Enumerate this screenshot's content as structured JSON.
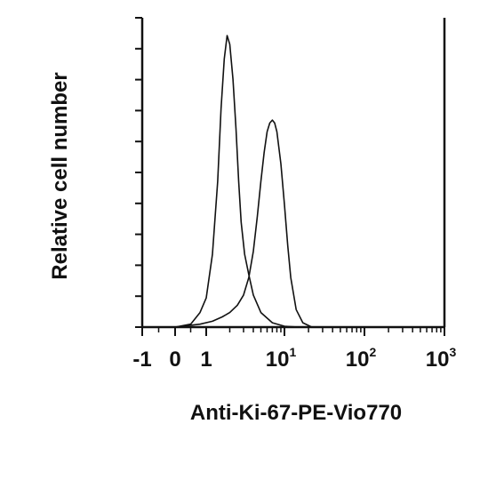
{
  "chart_data": {
    "type": "line",
    "xlabel": "Anti-Ki-67-PE-Vio770",
    "ylabel": "Relative cell number",
    "x_scale": "biexponential",
    "x_ticks": [
      {
        "value": -1,
        "base": "-1",
        "exp": ""
      },
      {
        "value": 0,
        "base": "0",
        "exp": ""
      },
      {
        "value": 1,
        "base": "1",
        "exp": ""
      },
      {
        "value": 10,
        "base": "10",
        "exp": "1"
      },
      {
        "value": 100,
        "base": "10",
        "exp": "2"
      },
      {
        "value": 1000,
        "base": "10",
        "exp": "3"
      }
    ],
    "y_ticks_labeled": false,
    "grid": false,
    "series": [
      {
        "points": [
          [
            0,
            0
          ],
          [
            0.5,
            0.01
          ],
          [
            0.8,
            0.05
          ],
          [
            1,
            0.1
          ],
          [
            1.2,
            0.25
          ],
          [
            1.4,
            0.5
          ],
          [
            1.55,
            0.75
          ],
          [
            1.7,
            0.92
          ],
          [
            1.85,
            1.0
          ],
          [
            2.0,
            0.97
          ],
          [
            2.2,
            0.85
          ],
          [
            2.4,
            0.68
          ],
          [
            2.6,
            0.5
          ],
          [
            2.8,
            0.36
          ],
          [
            3.1,
            0.25
          ],
          [
            3.5,
            0.18
          ],
          [
            4.0,
            0.11
          ],
          [
            5.0,
            0.05
          ],
          [
            7.0,
            0.015
          ],
          [
            10,
            0.003
          ],
          [
            15,
            0
          ]
        ]
      },
      {
        "points": [
          [
            0,
            0
          ],
          [
            0.8,
            0.01
          ],
          [
            1.2,
            0.02
          ],
          [
            1.6,
            0.035
          ],
          [
            2.0,
            0.05
          ],
          [
            2.5,
            0.075
          ],
          [
            3.0,
            0.11
          ],
          [
            3.5,
            0.17
          ],
          [
            4.0,
            0.26
          ],
          [
            4.5,
            0.38
          ],
          [
            5.0,
            0.5
          ],
          [
            5.5,
            0.6
          ],
          [
            6.0,
            0.67
          ],
          [
            6.5,
            0.7
          ],
          [
            7.0,
            0.71
          ],
          [
            7.5,
            0.7
          ],
          [
            8.0,
            0.67
          ],
          [
            9.0,
            0.56
          ],
          [
            10,
            0.42
          ],
          [
            11,
            0.28
          ],
          [
            12,
            0.17
          ],
          [
            14,
            0.06
          ],
          [
            17,
            0.015
          ],
          [
            22,
            0
          ]
        ]
      }
    ]
  }
}
